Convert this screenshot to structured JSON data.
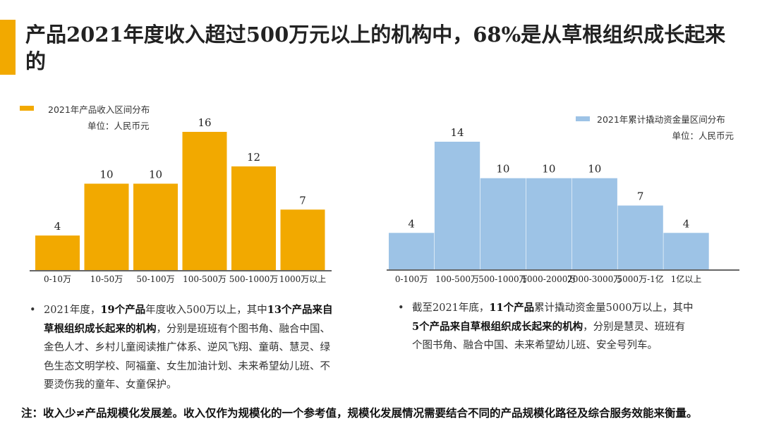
{
  "title": "产品2021年度收入超过500万元以上的机构中，68%是从草根组织成长起来的",
  "colors": {
    "accent": "#F2A900",
    "left_bar": "#F2A900",
    "right_bar": "#9DC3E6",
    "axis": "#333333"
  },
  "chart_data": [
    {
      "type": "bar",
      "legend": "2021年产品收入区间分布",
      "unit": "单位：人民币元",
      "legend_position": "top-left",
      "categories": [
        "0-10万",
        "10-50万",
        "50-100万",
        "100-500万",
        "500-1000万",
        "1000万以上"
      ],
      "values": [
        4,
        10,
        10,
        16,
        12,
        7
      ],
      "ylim": [
        0,
        16
      ],
      "grid": false
    },
    {
      "type": "bar",
      "legend": "2021年累计撬动资金量区间分布",
      "unit": "单位：人民币元",
      "legend_position": "top-right",
      "categories": [
        "0-100万",
        "100-500万",
        "500-1000万",
        "1000-2000万",
        "2000-3000万",
        "5000万-1亿",
        "1亿以上"
      ],
      "values": [
        4,
        14,
        10,
        10,
        10,
        7,
        4
      ],
      "ylim": [
        0,
        14
      ],
      "grid": false
    }
  ],
  "left_bullet": [
    {
      "t": "2021年度，",
      "b": false
    },
    {
      "t": "19个产品",
      "b": true
    },
    {
      "t": "年度收入500万以上，其中",
      "b": false
    },
    {
      "t": "13个产品来自草根组织成长起来的机构",
      "b": true
    },
    {
      "t": "，分别是班班有个图书角、融合中国、金色人才、乡村儿童阅读推广体系、逆风飞翔、童萌、慧灵、绿色生态文明学校、阿福童、女生加油计划、未来希望幼儿班、不要烫伤我的童年、女童保护。",
      "b": false
    }
  ],
  "right_bullet": [
    {
      "t": "截至2021年底，",
      "b": false
    },
    {
      "t": "11个产品",
      "b": true
    },
    {
      "t": "累计撬动资金量5000万以上，其中",
      "b": false
    },
    {
      "t": "5个产品来自草根组织成长起来的机构",
      "b": true
    },
    {
      "t": "，分别是慧灵、班班有个图书角、融合中国、未来希望幼儿班、安全号列车。",
      "b": false
    }
  ],
  "bullet_symbol": "•",
  "note": "注：收入少≠产品规模化发展差。收入仅作为规模化的一个参考值，规模化发展情况需要结合不同的产品规模化路径及综合服务效能来衡量。"
}
